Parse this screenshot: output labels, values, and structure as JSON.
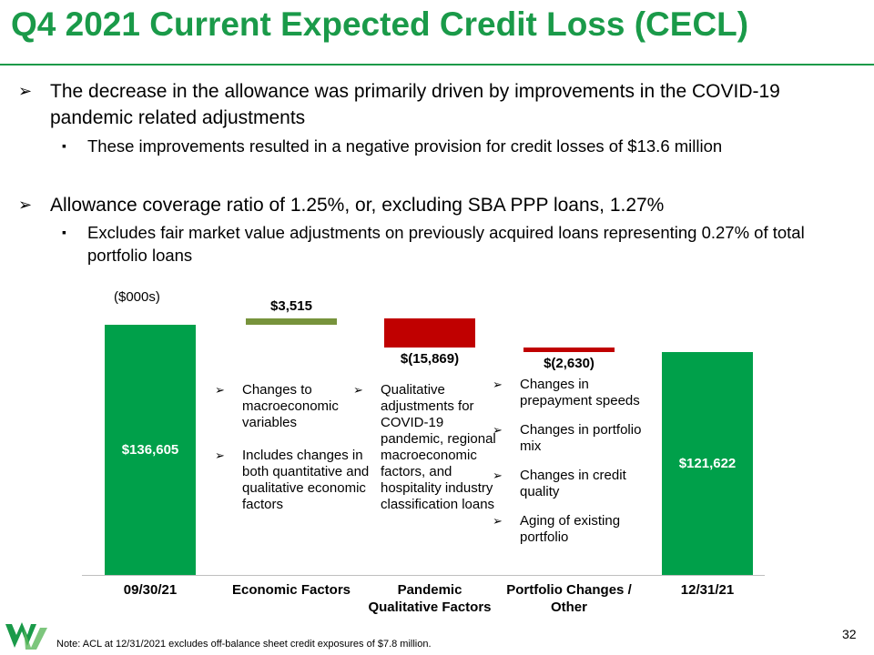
{
  "title": "Q4 2021 Current Expected Credit Loss (CECL)",
  "bullets": [
    {
      "text": "The decrease in the allowance was primarily driven by improvements in the COVID-19 pandemic related adjustments",
      "sub": [
        "These improvements resulted in a negative provision for credit losses of $13.6 million"
      ]
    },
    {
      "text": "Allowance coverage ratio of 1.25%, or, excluding SBA PPP loans, 1.27%",
      "sub": [
        "Excludes fair market value adjustments on previously acquired loans representing 0.27% of total portfolio loans"
      ]
    }
  ],
  "note": "Note: ACL at 12/31/2021 excludes off-balance sheet credit exposures of $7.8 million.",
  "page_number": "32",
  "chart_data": {
    "type": "waterfall",
    "unit_label": "($000s)",
    "categories": [
      "09/30/21",
      "Economic Factors",
      "Pandemic Qualitative Factors",
      "Portfolio Changes / Other",
      "12/31/21"
    ],
    "values": [
      136605,
      3515,
      -15869,
      -2630,
      121622
    ],
    "value_labels": [
      "$136,605",
      "$3,515",
      "$(15,869)",
      "$(2,630)",
      "$121,622"
    ],
    "colors": {
      "total": "#00a04a",
      "increase": "#77933c",
      "decrease": "#c00000"
    },
    "annotations": [
      [],
      [
        "Changes to macroeconomic variables",
        "Includes changes in both quantitative and qualitative economic factors"
      ],
      [
        "Qualitative adjustments for COVID-19 pandemic, regional macroeconomic factors, and hospitality industry classification loans"
      ],
      [
        "Changes in prepayment speeds",
        "Changes in portfolio mix",
        "Changes in credit quality",
        "Aging of existing portfolio"
      ],
      []
    ]
  }
}
